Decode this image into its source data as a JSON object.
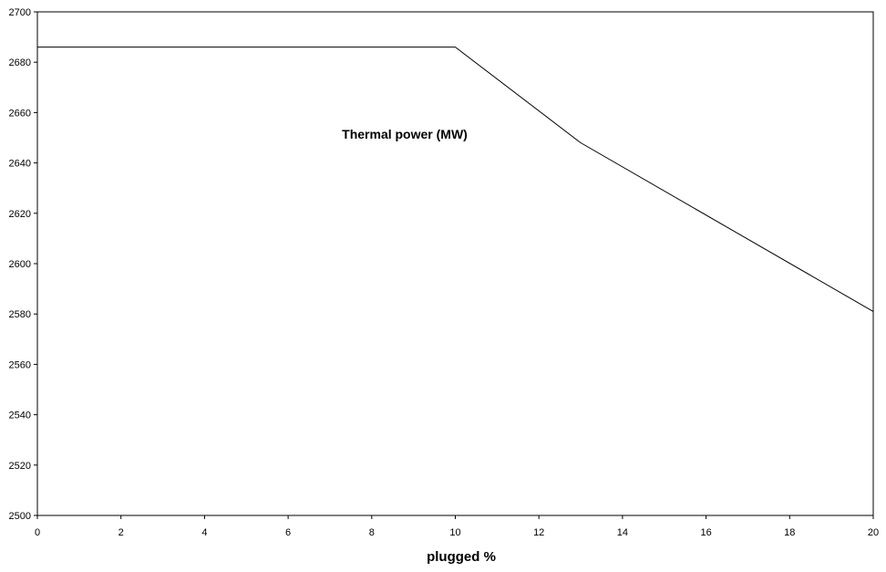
{
  "chart_data": {
    "type": "line",
    "title": "",
    "xlabel": "plugged %",
    "ylabel": "",
    "annotation": "Thermal power (MW)",
    "xlim": [
      0,
      20
    ],
    "ylim": [
      2500,
      2700
    ],
    "x_ticks": [
      0,
      2,
      4,
      6,
      8,
      10,
      12,
      14,
      16,
      18,
      20
    ],
    "y_ticks": [
      2500,
      2520,
      2540,
      2560,
      2580,
      2600,
      2620,
      2640,
      2660,
      2680,
      2700
    ],
    "grid": false,
    "legend": "none",
    "series": [
      {
        "x": [
          0,
          10,
          13,
          20
        ],
        "y": [
          2686,
          2686,
          2648,
          2581
        ],
        "color": "#000000"
      }
    ]
  }
}
